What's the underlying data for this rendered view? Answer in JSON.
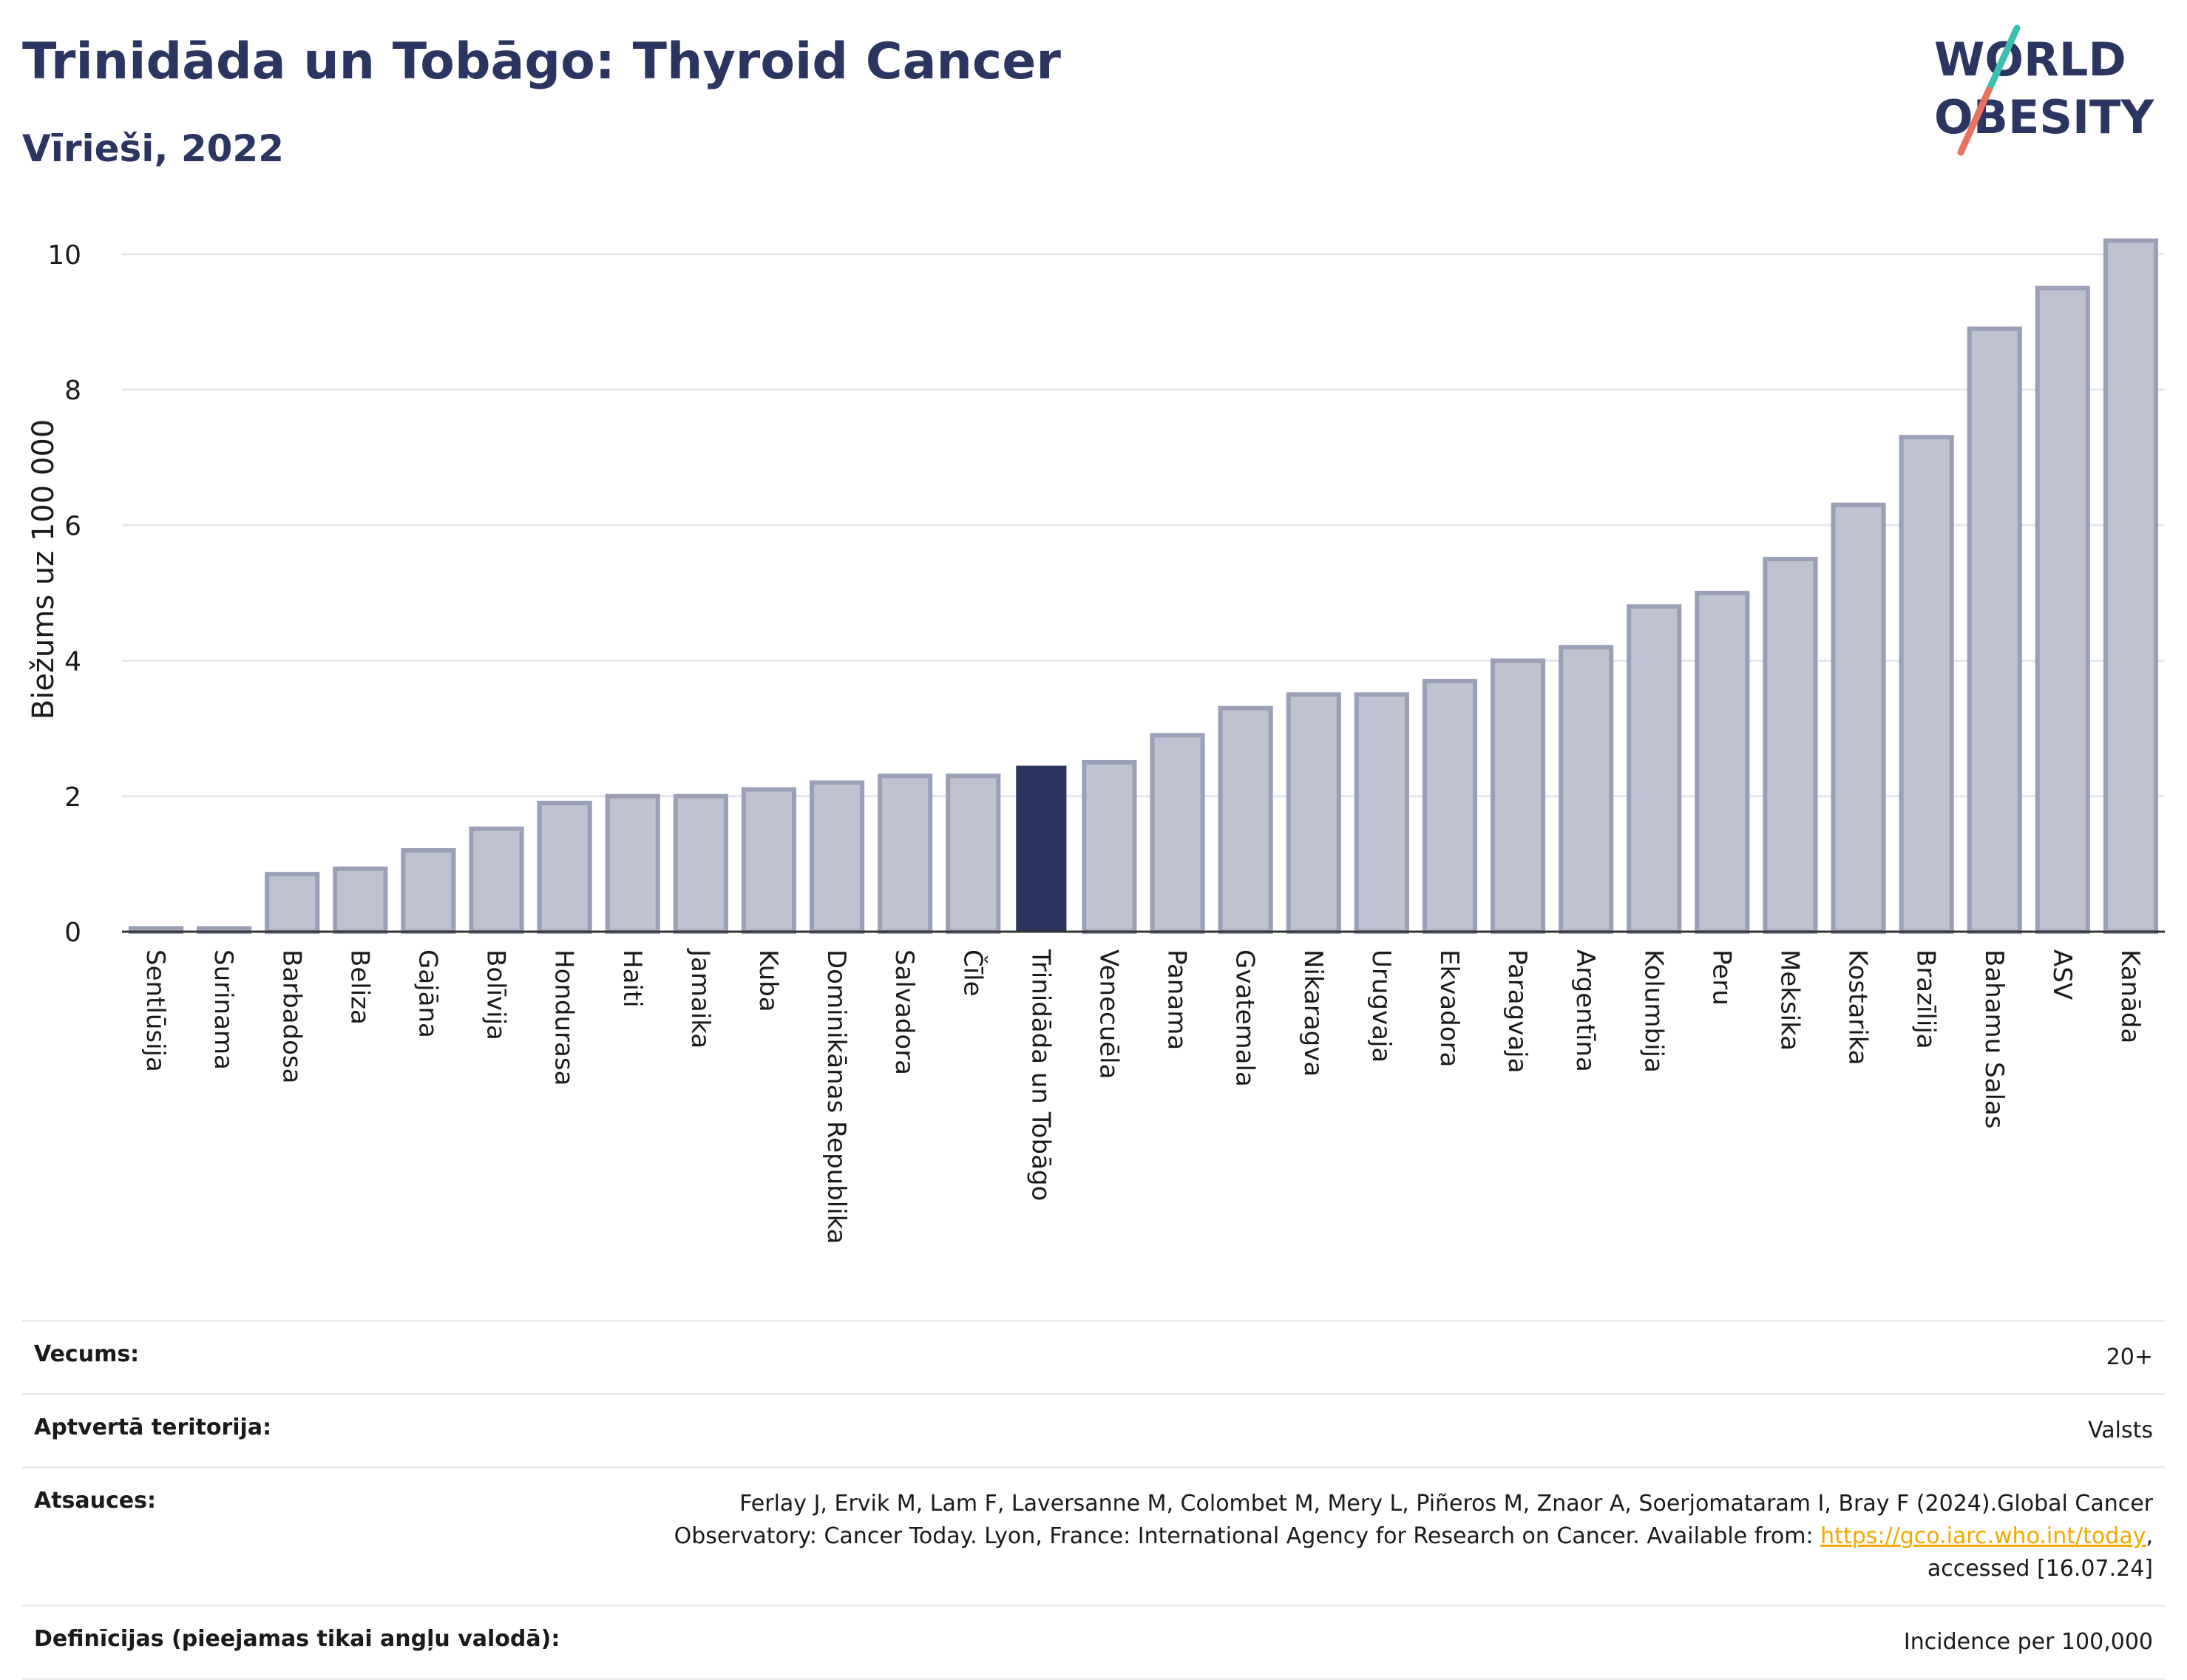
{
  "header": {
    "title": "Trinidāda un Tobāgo: Thyroid Cancer",
    "subtitle": "Vīrieši, 2022"
  },
  "logo": {
    "line1": "WORLD",
    "line2": "OBESITY"
  },
  "colors": {
    "bar": "#bfc3d1",
    "bar_border": "#9aa0b8",
    "highlight": "#2a3561",
    "grid": "#e6e8ee",
    "axis": "#333333"
  },
  "chart_data": {
    "type": "bar",
    "ylabel": "Biežums uz 100 000",
    "ylim": [
      0,
      10.5
    ],
    "yticks": [
      0,
      2,
      4,
      6,
      8,
      10
    ],
    "grid": true,
    "highlight": "Trinidāda un Tobāgo",
    "categories": [
      "Sentlūsija",
      "Surinama",
      "Barbadosa",
      "Beliza",
      "Gajāna",
      "Bolīvija",
      "Hondurasa",
      "Haiti",
      "Jamaika",
      "Kuba",
      "Dominikānas Republika",
      "Salvadora",
      "Čīle",
      "Trinidāda un Tobāgo",
      "Venecuēla",
      "Panama",
      "Gvatemala",
      "Nikaragva",
      "Urugvaja",
      "Ekvadora",
      "Paragvaja",
      "Argentīna",
      "Kolumbija",
      "Peru",
      "Meksika",
      "Kostarika",
      "Brazīlija",
      "Bahamu Salas",
      "ASV",
      "Kanāda"
    ],
    "values": [
      0.05,
      0.05,
      0.85,
      0.93,
      1.2,
      1.52,
      1.9,
      2.0,
      2.0,
      2.1,
      2.2,
      2.3,
      2.3,
      2.45,
      2.5,
      2.9,
      3.3,
      3.5,
      3.5,
      3.7,
      4.0,
      4.2,
      4.8,
      5.0,
      5.5,
      6.3,
      7.3,
      8.9,
      9.5,
      10.2
    ]
  },
  "info": {
    "rows": [
      {
        "label": "Vecums:",
        "value": "20+"
      },
      {
        "label": "Aptvertā teritorija:",
        "value": "Valsts"
      },
      {
        "label": "Atsauces:",
        "value_pre": "Ferlay J, Ervik M, Lam F, Laversanne M, Colombet M, Mery L, Piñeros M, Znaor A, Soerjomataram I, Bray F (2024).Global Cancer Observatory: Cancer Today. Lyon, France: International Agency for Research on Cancer. Available from: ",
        "link": "https://gco.iarc.who.int/today",
        "value_post": ", accessed [16.07.24]"
      },
      {
        "label": "Definīcijas (pieejamas tikai angļu valodā):",
        "value": "Incidence per 100,000"
      }
    ]
  }
}
